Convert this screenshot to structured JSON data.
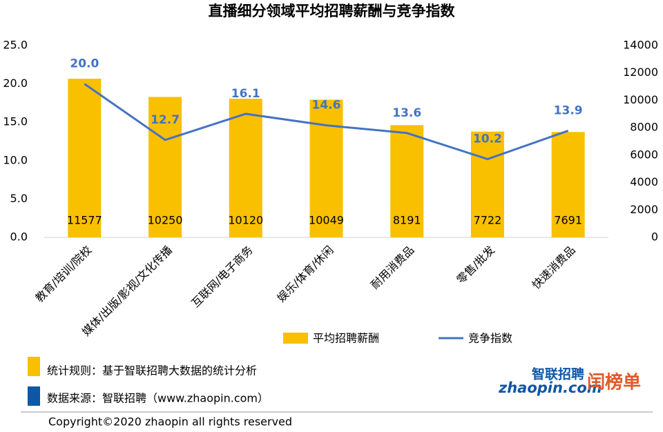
{
  "chart_data": {
    "type": "bar-line",
    "title": "直播细分领域平均招聘薪酬与竞争指数",
    "categories": [
      "教育/培训/院校",
      "媒体/出版/影视/文化传播",
      "互联网/电子商务",
      "娱乐/体育/休闲",
      "耐用消费品",
      "零售/批发",
      "快速消费品"
    ],
    "series": [
      {
        "name": "平均招聘薪酬",
        "type": "bar",
        "axis": "y2",
        "color": "#f9c000",
        "values": [
          11577,
          10250,
          10120,
          10049,
          8191,
          7722,
          7691
        ]
      },
      {
        "name": "竞争指数",
        "type": "line",
        "axis": "y",
        "color": "#4472c4",
        "values": [
          20.0,
          12.7,
          16.1,
          14.6,
          13.6,
          10.2,
          13.9
        ],
        "value_labels": [
          "20.0",
          "12.7",
          "16.1",
          "14.6",
          "13.6",
          "10.2",
          "13.9"
        ]
      }
    ],
    "ylim": [
      0,
      25
    ],
    "yticks": [
      {
        "value": 0,
        "label": "0.0"
      },
      {
        "value": 5,
        "label": "5.0"
      },
      {
        "value": 10,
        "label": "10.0"
      },
      {
        "value": 15,
        "label": "15.0"
      },
      {
        "value": 20,
        "label": "20.0"
      },
      {
        "value": 25,
        "label": "25.0"
      }
    ],
    "y2lim": [
      0,
      14000
    ],
    "y2ticks": [
      0,
      2000,
      4000,
      6000,
      8000,
      10000,
      12000,
      14000
    ],
    "legend": "bottom"
  },
  "notes": [
    "统计规则：基于智联招聘大数据的统计分析",
    "数据来源：智联招聘（www.zhaopin.com）"
  ],
  "copyright": "Copyright©2020 zhaopin all rights reserved",
  "logos": [
    "智联招聘",
    "zhaopin.com",
    "闰榜单"
  ]
}
